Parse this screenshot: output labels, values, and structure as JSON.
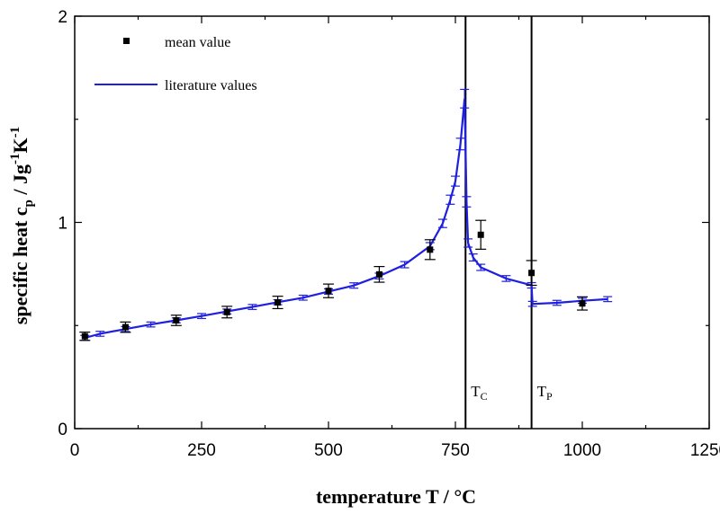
{
  "chart_data": {
    "type": "scatter",
    "title": "",
    "xlabel": "temperature T / °C",
    "ylabel_parts": [
      "specific heat c",
      "p",
      " / Jg",
      "-1",
      "K",
      "-1"
    ],
    "xlim": [
      0,
      1250
    ],
    "ylim": [
      0,
      2
    ],
    "x_ticks": [
      0,
      250,
      500,
      750,
      1000,
      1250
    ],
    "y_ticks": [
      0,
      1,
      2
    ],
    "grid": false,
    "legend_position": "top-left",
    "series": [
      {
        "name": "mean value",
        "kind": "points",
        "color": "#000000",
        "points": [
          {
            "x": 20,
            "y": 0.448,
            "err": 0.02
          },
          {
            "x": 100,
            "y": 0.492,
            "err": 0.025
          },
          {
            "x": 200,
            "y": 0.525,
            "err": 0.025
          },
          {
            "x": 300,
            "y": 0.565,
            "err": 0.028
          },
          {
            "x": 400,
            "y": 0.612,
            "err": 0.03
          },
          {
            "x": 500,
            "y": 0.668,
            "err": 0.033
          },
          {
            "x": 600,
            "y": 0.748,
            "err": 0.038
          },
          {
            "x": 700,
            "y": 0.868,
            "err": 0.048
          },
          {
            "x": 800,
            "y": 0.94,
            "err": 0.07
          },
          {
            "x": 900,
            "y": 0.755,
            "err": 0.06
          },
          {
            "x": 1000,
            "y": 0.607,
            "err": 0.032
          }
        ]
      },
      {
        "name": "literature values",
        "kind": "line",
        "color": "#1f1fe0",
        "points": [
          {
            "x": 20,
            "y": 0.44,
            "err": 0.012
          },
          {
            "x": 50,
            "y": 0.46,
            "err": 0.012
          },
          {
            "x": 100,
            "y": 0.483,
            "err": 0.012
          },
          {
            "x": 150,
            "y": 0.505,
            "err": 0.012
          },
          {
            "x": 200,
            "y": 0.525,
            "err": 0.012
          },
          {
            "x": 250,
            "y": 0.546,
            "err": 0.012
          },
          {
            "x": 300,
            "y": 0.568,
            "err": 0.012
          },
          {
            "x": 350,
            "y": 0.59,
            "err": 0.012
          },
          {
            "x": 400,
            "y": 0.613,
            "err": 0.012
          },
          {
            "x": 450,
            "y": 0.635,
            "err": 0.012
          },
          {
            "x": 500,
            "y": 0.665,
            "err": 0.013
          },
          {
            "x": 550,
            "y": 0.694,
            "err": 0.013
          },
          {
            "x": 600,
            "y": 0.74,
            "err": 0.014
          },
          {
            "x": 650,
            "y": 0.795,
            "err": 0.015
          },
          {
            "x": 700,
            "y": 0.885,
            "err": 0.017
          },
          {
            "x": 725,
            "y": 0.995,
            "err": 0.02
          },
          {
            "x": 740,
            "y": 1.11,
            "err": 0.022
          },
          {
            "x": 750,
            "y": 1.2,
            "err": 0.024
          },
          {
            "x": 760,
            "y": 1.38,
            "err": 0.028
          },
          {
            "x": 768,
            "y": 1.6,
            "err": 0.045
          },
          {
            "x": 772,
            "y": 1.1,
            "err": 0.025
          },
          {
            "x": 775,
            "y": 0.9,
            "err": 0.02
          },
          {
            "x": 785,
            "y": 0.83,
            "err": 0.017
          },
          {
            "x": 800,
            "y": 0.782,
            "err": 0.015
          },
          {
            "x": 850,
            "y": 0.728,
            "err": 0.014
          },
          {
            "x": 900,
            "y": 0.695,
            "err": 0.013
          },
          {
            "x": 902,
            "y": 0.605,
            "err": 0.012
          },
          {
            "x": 950,
            "y": 0.61,
            "err": 0.012
          },
          {
            "x": 1000,
            "y": 0.62,
            "err": 0.012
          },
          {
            "x": 1050,
            "y": 0.628,
            "err": 0.012
          }
        ]
      }
    ],
    "vertical_lines": [
      {
        "x": 770,
        "label_main": "T",
        "label_sub": "C"
      },
      {
        "x": 900,
        "label_main": "T",
        "label_sub": "P"
      }
    ]
  }
}
